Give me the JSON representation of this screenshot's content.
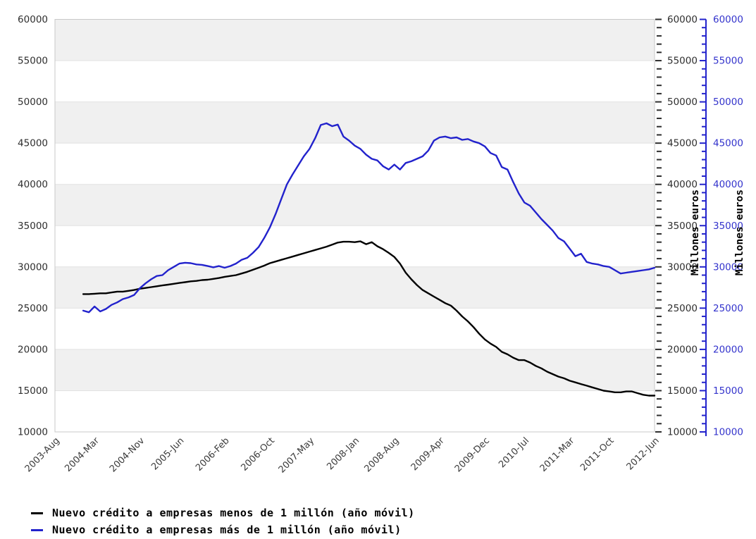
{
  "page": {
    "background_color": "#ffffff"
  },
  "chart_data": {
    "type": "line",
    "title": "",
    "grid": {
      "alternating_bands": true,
      "band_color": "#f0f0f0",
      "gridline_color": "#e2e2e2",
      "border_color": "#c9c9c9"
    },
    "x_axis": {
      "unit": "months",
      "first_tick": "2003-Aug",
      "last_tick": "2012-Jun",
      "total_months": 106,
      "tick_labels": [
        "2003-Aug",
        "2004-Mar",
        "2004-Nov",
        "2005-Jun",
        "2006-Feb",
        "2006-Oct",
        "2007-May",
        "2008-Jan",
        "2008-Aug",
        "2009-Apr",
        "2009-Dec",
        "2010-Jul",
        "2011-Mar",
        "2011-Oct",
        "2012-Jun"
      ],
      "tick_month_offsets": [
        0,
        7,
        15,
        22,
        30,
        38,
        45,
        53,
        60,
        68,
        76,
        83,
        91,
        98,
        106
      ],
      "label_rotation_deg": -45,
      "label_color": "#3a3a3a"
    },
    "y_axis": {
      "min": 10000,
      "max": 60000,
      "major_step": 5000,
      "minor_step": 1000,
      "tick_labels": [
        "60000",
        "55000",
        "50000",
        "45000",
        "40000",
        "35000",
        "30000",
        "25000",
        "20000",
        "15000",
        "10000"
      ],
      "left_label_color": "#2e2e2e",
      "right_black_label_color": "#2e2e2e",
      "right_blue_label_color": "#3333cc",
      "right_black_title": "Millones euros",
      "right_blue_title": "Millones euros",
      "blue_spine_color": "#2222cc"
    },
    "legend_position": "bottom-left",
    "series": [
      {
        "name": "Nuevo crédito a empresas menos de 1 millón (año móvil)",
        "color": "#000000",
        "frequency": "monthly",
        "start": "2004-Jan",
        "start_month_offset": 5,
        "values": [
          26700,
          26700,
          26750,
          26800,
          26800,
          26900,
          27000,
          27000,
          27100,
          27200,
          27350,
          27450,
          27550,
          27650,
          27750,
          27850,
          27950,
          28050,
          28150,
          28250,
          28300,
          28400,
          28450,
          28550,
          28650,
          28800,
          28900,
          29000,
          29200,
          29400,
          29650,
          29900,
          30150,
          30450,
          30650,
          30850,
          31050,
          31250,
          31450,
          31650,
          31850,
          32050,
          32250,
          32450,
          32700,
          32950,
          33050,
          33050,
          33000,
          33100,
          32750,
          33000,
          32500,
          32150,
          31700,
          31200,
          30400,
          29300,
          28500,
          27800,
          27200,
          26800,
          26400,
          26000,
          25600,
          25300,
          24700,
          24000,
          23400,
          22700,
          21900,
          21200,
          20700,
          20300,
          19700,
          19400,
          19000,
          18700,
          18700,
          18400,
          18000,
          17700,
          17300,
          17000,
          16700,
          16500,
          16200,
          16000,
          15800,
          15600,
          15400,
          15200,
          15000,
          14900,
          14800,
          14800,
          14900,
          14900,
          14700,
          14500,
          14400,
          14400
        ]
      },
      {
        "name": "Nuevo crédito a empresas más de 1 millón (año móvil)",
        "color": "#2222cc",
        "frequency": "monthly",
        "start": "2004-Jan",
        "start_month_offset": 5,
        "values": [
          24700,
          24500,
          25200,
          24600,
          24900,
          25400,
          25700,
          26100,
          26300,
          26600,
          27400,
          28000,
          28500,
          28900,
          29000,
          29600,
          30000,
          30400,
          30500,
          30450,
          30300,
          30250,
          30100,
          29950,
          30100,
          29900,
          30100,
          30400,
          30850,
          31100,
          31700,
          32400,
          33500,
          34800,
          36400,
          38200,
          40000,
          41200,
          42300,
          43400,
          44300,
          45600,
          47200,
          47400,
          47050,
          47250,
          45800,
          45300,
          44700,
          44300,
          43600,
          43100,
          42900,
          42200,
          41800,
          42400,
          41800,
          42600,
          42800,
          43100,
          43400,
          44100,
          45300,
          45700,
          45800,
          45600,
          45700,
          45400,
          45500,
          45200,
          45000,
          44600,
          43800,
          43500,
          42100,
          41800,
          40300,
          38900,
          37800,
          37400,
          36600,
          35800,
          35100,
          34400,
          33500,
          33100,
          32200,
          31300,
          31600,
          30600,
          30400,
          30300,
          30100,
          30000,
          29600,
          29200,
          29300,
          29400,
          29500,
          29600,
          29700,
          29900
        ]
      }
    ]
  }
}
